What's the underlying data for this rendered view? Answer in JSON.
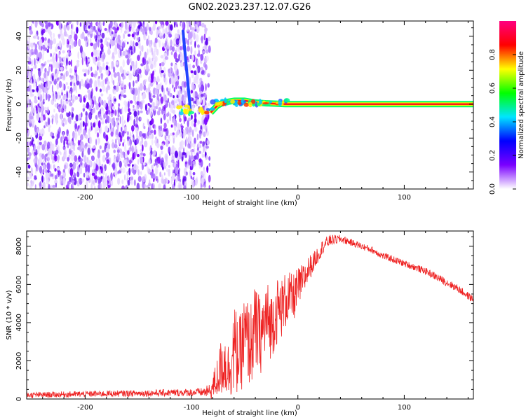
{
  "figure": {
    "title": "GN02.2023.237.12.07.G26"
  },
  "chart_data": [
    {
      "type": "heatmap",
      "xlabel": "Height of straight line (km)",
      "ylabel": "Frequency (Hz)",
      "xlim": [
        -255,
        165
      ],
      "ylim": [
        -50,
        49
      ],
      "xticks": [
        -200,
        -100,
        0,
        100
      ],
      "yticks": [
        -40,
        -20,
        0,
        20,
        40
      ],
      "grid": false,
      "noise_region_x": [
        -255,
        -83
      ],
      "noise_region_y": [
        -50,
        49
      ],
      "trace": [
        {
          "x": -82,
          "y": -5
        },
        {
          "x": -76,
          "y": -1
        },
        {
          "x": -70,
          "y": 1
        },
        {
          "x": -60,
          "y": 2
        },
        {
          "x": -50,
          "y": 2
        },
        {
          "x": -40,
          "y": 1
        },
        {
          "x": -30,
          "y": 0.5
        },
        {
          "x": -20,
          "y": 0.3
        },
        {
          "x": -12,
          "y": 0
        },
        {
          "x": 165,
          "y": 0
        }
      ],
      "streak": {
        "x_top": -108,
        "y_top": 43,
        "x_bottom": -101,
        "y_bottom": -4
      },
      "colorbar": {
        "label": "Normalized spectral amplitude",
        "range": [
          0,
          1
        ],
        "ticks": [
          0.0,
          0.2,
          0.4,
          0.6,
          0.8
        ],
        "colors": [
          "#ffffff",
          "#7a00ff",
          "#0000ff",
          "#00e5ff",
          "#00ff00",
          "#ffff00",
          "#ff0000",
          "#ff0080"
        ]
      },
      "colors": {
        "noise": "#7a00ff",
        "trace_core": "#ff0000",
        "trace_edge": "#00ff00"
      }
    },
    {
      "type": "line",
      "xlabel": "Height of straight line (km)",
      "ylabel": "SNR (10 * v/v)",
      "xlim": [
        -255,
        165
      ],
      "ylim": [
        0,
        8800
      ],
      "xticks": [
        -200,
        -100,
        0,
        100
      ],
      "yticks": [
        0,
        2000,
        4000,
        6000,
        8000
      ],
      "grid": false,
      "color": "#ee2222",
      "series": [
        {
          "x": [
            -255,
            -200,
            -150,
            -100,
            -90,
            -82,
            -75,
            -70,
            -65,
            -60,
            -55,
            -50,
            -45,
            -40,
            -35,
            -30,
            -25,
            -20,
            -15,
            -10,
            -5,
            0,
            5,
            10,
            15,
            20,
            25,
            30,
            35,
            40,
            45,
            50,
            60,
            70,
            80,
            90,
            100,
            110,
            120,
            130,
            140,
            150,
            160,
            165
          ],
          "values": [
            200,
            260,
            300,
            340,
            360,
            400,
            1200,
            2000,
            1500,
            2600,
            2200,
            3200,
            2800,
            3600,
            3300,
            4200,
            3900,
            4600,
            4800,
            5300,
            5200,
            5800,
            6200,
            6800,
            7200,
            7700,
            8100,
            8300,
            8350,
            8380,
            8300,
            8200,
            8000,
            7800,
            7500,
            7300,
            7100,
            6900,
            6700,
            6400,
            6100,
            5800,
            5400,
            5200
          ],
          "spread": [
            150,
            160,
            170,
            200,
            220,
            400,
            1200,
            1800,
            1500,
            2400,
            2000,
            2400,
            2200,
            2400,
            2000,
            2200,
            1800,
            1800,
            1600,
            1500,
            1300,
            1100,
            900,
            700,
            500,
            450,
            350,
            300,
            250,
            220,
            200,
            180,
            180,
            180,
            180,
            180,
            180,
            180,
            180,
            200,
            200,
            200,
            200,
            200
          ]
        }
      ]
    }
  ]
}
